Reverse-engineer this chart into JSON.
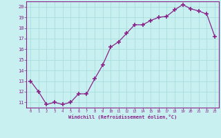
{
  "x": [
    0,
    1,
    2,
    3,
    4,
    5,
    6,
    7,
    8,
    9,
    10,
    11,
    12,
    13,
    14,
    15,
    16,
    17,
    18,
    19,
    20,
    21,
    22,
    23
  ],
  "y": [
    13,
    12,
    10.8,
    11,
    10.8,
    11,
    11.8,
    11.8,
    13.2,
    14.5,
    16.2,
    16.7,
    17.5,
    18.3,
    18.3,
    18.7,
    19.0,
    19.1,
    19.7,
    20.2,
    19.8,
    19.6,
    19.3,
    17.2
  ],
  "line_color": "#882288",
  "marker": "+",
  "marker_size": 4,
  "marker_linewidth": 1.2,
  "bg_color": "#c8f0f0",
  "grid_color": "#aadddd",
  "xlabel": "Windchill (Refroidissement éolien,°C)",
  "tick_color": "#882288",
  "ylim": [
    10.5,
    20.5
  ],
  "xlim": [
    -0.5,
    23.5
  ],
  "yticks": [
    11,
    12,
    13,
    14,
    15,
    16,
    17,
    18,
    19,
    20
  ],
  "xticks": [
    0,
    1,
    2,
    3,
    4,
    5,
    6,
    7,
    8,
    9,
    10,
    11,
    12,
    13,
    14,
    15,
    16,
    17,
    18,
    19,
    20,
    21,
    22,
    23
  ],
  "xtick_labels": [
    "0",
    "1",
    "2",
    "3",
    "4",
    "5",
    "6",
    "7",
    "8",
    "9",
    "10",
    "11",
    "12",
    "13",
    "14",
    "15",
    "16",
    "17",
    "18",
    "19",
    "20",
    "21",
    "22",
    "23"
  ]
}
